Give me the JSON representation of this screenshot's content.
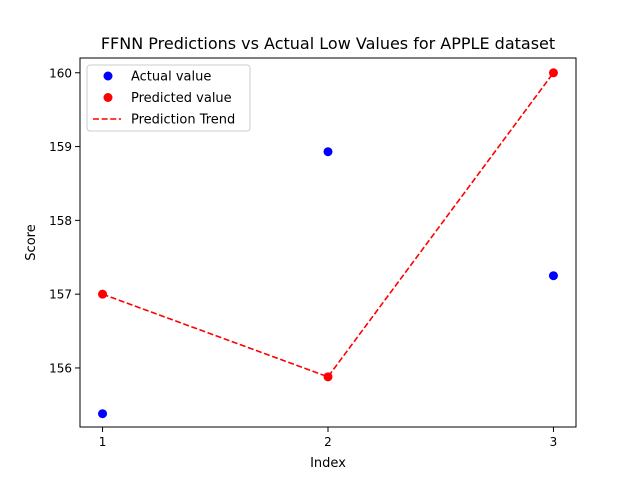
{
  "chart_data": {
    "type": "scatter",
    "title": "FFNN Predictions vs Actual Low Values for APPLE dataset",
    "xlabel": "Index",
    "ylabel": "Score",
    "xlim": [
      0.9,
      3.1
    ],
    "ylim": [
      155.2,
      160.2
    ],
    "xticks": [
      1,
      2,
      3
    ],
    "yticks": [
      156,
      157,
      158,
      159,
      160
    ],
    "grid": false,
    "legend_position": "top-left",
    "series": [
      {
        "name": "Actual value",
        "kind": "scatter",
        "color": "#0000ff",
        "x": [
          1,
          2,
          3
        ],
        "y": [
          155.38,
          158.93,
          157.25
        ]
      },
      {
        "name": "Predicted value",
        "kind": "scatter",
        "color": "#ff0000",
        "x": [
          1,
          2,
          3
        ],
        "y": [
          157.0,
          155.88,
          160.0
        ]
      },
      {
        "name": "Prediction Trend",
        "kind": "line",
        "style": "dashed",
        "color": "#ff0000",
        "x": [
          1,
          2,
          3
        ],
        "y": [
          157.0,
          155.88,
          160.0
        ]
      }
    ]
  }
}
